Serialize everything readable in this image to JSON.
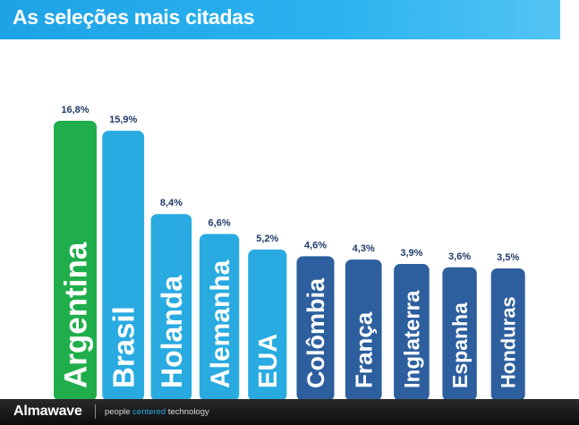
{
  "title": "As seleções mais citadas",
  "footer": {
    "brand": "Almawave",
    "tagline_before": "people ",
    "tagline_accent": "centered",
    "tagline_after": " technology"
  },
  "colors": {
    "title_bar": "#1ea3e6",
    "first": "#1fae4b",
    "light": "#29abe2",
    "dark": "#2d5f9e",
    "value_label": "#1f3b68"
  },
  "chart_data": {
    "type": "bar",
    "title": "As seleções mais citadas",
    "xlabel": "",
    "ylabel": "",
    "grid": false,
    "legend": "none",
    "categories": [
      "Argentina",
      "Brasil",
      "Holanda",
      "Alemanha",
      "EUA",
      "Colômbia",
      "França",
      "Inglaterra",
      "Espanha",
      "Honduras"
    ],
    "values": [
      16.8,
      15.9,
      8.4,
      6.6,
      5.2,
      4.6,
      4.3,
      3.9,
      3.6,
      3.5
    ],
    "value_labels": [
      "16,8%",
      "15,9%",
      "8,4%",
      "6,6%",
      "5,2%",
      "4,6%",
      "4,3%",
      "3,9%",
      "3,6%",
      "3,5%"
    ],
    "bar_colors": [
      "#1fae4b",
      "#29abe2",
      "#29abe2",
      "#29abe2",
      "#29abe2",
      "#2d5f9e",
      "#2d5f9e",
      "#2d5f9e",
      "#2d5f9e",
      "#2d5f9e"
    ]
  }
}
